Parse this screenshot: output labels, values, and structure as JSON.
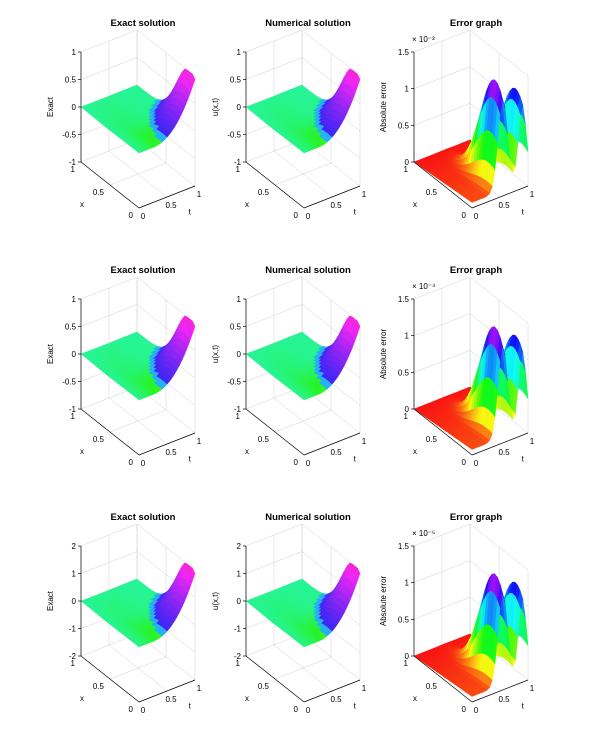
{
  "chart_data": [
    {
      "type": "surface",
      "title": "Exact solution",
      "zlabel": "Exact",
      "xlabel": "x",
      "ylabel": "t",
      "zticks": [
        "-1",
        "-0.5",
        "0",
        "0.5",
        "1"
      ],
      "zlim": [
        -1,
        1
      ],
      "xticks": [
        "0",
        "0.5",
        "1"
      ],
      "tticks": [
        "0",
        "0.5",
        "1"
      ],
      "colormap": "cool",
      "function": "single-hump"
    },
    {
      "type": "surface",
      "title": "Numerical solution",
      "zlabel": "u(x,t)",
      "xlabel": "x",
      "ylabel": "t",
      "zticks": [
        "-1",
        "-0.5",
        "0",
        "0.5",
        "1"
      ],
      "zlim": [
        -1,
        1
      ],
      "xticks": [
        "0",
        "0.5",
        "1"
      ],
      "tticks": [
        "0",
        "0.5",
        "1"
      ],
      "colormap": "cool",
      "function": "single-hump"
    },
    {
      "type": "surface",
      "title": "Error graph",
      "zlabel": "Absolute error",
      "xlabel": "x",
      "ylabel": "t",
      "zticks": [
        "0",
        "0.5",
        "1",
        "1.5"
      ],
      "zlim": [
        0,
        1.5
      ],
      "scale_label": "× 10⁻³",
      "xticks": [
        "0",
        "0.5",
        "1"
      ],
      "tticks": [
        "0",
        "0.5",
        "1"
      ],
      "colormap": "hsv",
      "function": "double-hump"
    },
    {
      "type": "surface",
      "title": "Exact solution",
      "zlabel": "Exact",
      "xlabel": "x",
      "ylabel": "t",
      "zticks": [
        "-1",
        "-0.5",
        "0",
        "0.5",
        "1"
      ],
      "zlim": [
        -1,
        1
      ],
      "xticks": [
        "0",
        "0.5",
        "1"
      ],
      "tticks": [
        "0",
        "0.5",
        "1"
      ],
      "colormap": "cool",
      "function": "single-hump"
    },
    {
      "type": "surface",
      "title": "Numerical solution",
      "zlabel": "u(x,t)",
      "xlabel": "x",
      "ylabel": "t",
      "zticks": [
        "-1",
        "-0.5",
        "0",
        "0.5",
        "1"
      ],
      "zlim": [
        -1,
        1
      ],
      "xticks": [
        "0",
        "0.5",
        "1"
      ],
      "tticks": [
        "0",
        "0.5",
        "1"
      ],
      "colormap": "cool",
      "function": "single-hump"
    },
    {
      "type": "surface",
      "title": "Error graph",
      "zlabel": "Absolute error",
      "xlabel": "x",
      "ylabel": "t",
      "zticks": [
        "0",
        "0.5",
        "1",
        "1.5"
      ],
      "zlim": [
        0,
        1.5
      ],
      "scale_label": "× 10⁻⁴",
      "xticks": [
        "0",
        "0.5",
        "1"
      ],
      "tticks": [
        "0",
        "0.5",
        "1"
      ],
      "colormap": "hsv",
      "function": "double-hump"
    },
    {
      "type": "surface",
      "title": "Exact solution",
      "zlabel": "Exact",
      "xlabel": "x",
      "ylabel": "t",
      "zticks": [
        "-2",
        "-1",
        "0",
        "1",
        "2"
      ],
      "zlim": [
        -2,
        2
      ],
      "xticks": [
        "0",
        "0.5",
        "1"
      ],
      "tticks": [
        "0",
        "0.5",
        "1"
      ],
      "colormap": "cool",
      "function": "single-hump"
    },
    {
      "type": "surface",
      "title": "Numerical solution",
      "zlabel": "u(x,t)",
      "xlabel": "x",
      "ylabel": "t",
      "zticks": [
        "-2",
        "-1",
        "0",
        "1",
        "2"
      ],
      "zlim": [
        -2,
        2
      ],
      "xticks": [
        "0",
        "0.5",
        "1"
      ],
      "tticks": [
        "0",
        "0.5",
        "1"
      ],
      "colormap": "cool",
      "function": "single-hump"
    },
    {
      "type": "surface",
      "title": "Error graph",
      "zlabel": "Absolute error",
      "xlabel": "x",
      "ylabel": "t",
      "zticks": [
        "0",
        "0.5",
        "1",
        "1.5"
      ],
      "zlim": [
        0,
        1.5
      ],
      "scale_label": "× 10⁻⁵",
      "xticks": [
        "0",
        "0.5",
        "1"
      ],
      "tticks": [
        "0",
        "0.5",
        "1"
      ],
      "colormap": "hsv",
      "function": "double-hump"
    }
  ]
}
